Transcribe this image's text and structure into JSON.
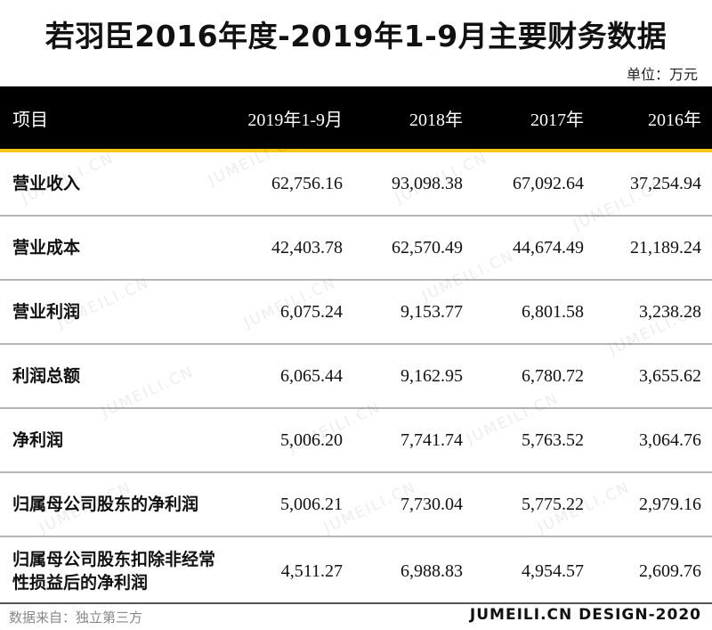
{
  "title": "若羽臣2016年度-2019年1-9月主要财务数据",
  "unit": "单位：万元",
  "watermark": "JUMEILI.CN",
  "table": {
    "headers": [
      "项目",
      "2019年1-9月",
      "2018年",
      "2017年",
      "2016年"
    ],
    "rows": [
      {
        "label": "营业收入",
        "values": [
          "62,756.16",
          "93,098.38",
          "67,092.64",
          "37,254.94"
        ]
      },
      {
        "label": "营业成本",
        "values": [
          "42,403.78",
          "62,570.49",
          "44,674.49",
          "21,189.24"
        ]
      },
      {
        "label": "营业利润",
        "values": [
          "6,075.24",
          "9,153.77",
          "6,801.58",
          "3,238.28"
        ]
      },
      {
        "label": "利润总额",
        "values": [
          "6,065.44",
          "9,162.95",
          "6,780.72",
          "3,655.62"
        ]
      },
      {
        "label": "净利润",
        "values": [
          "5,006.20",
          "7,741.74",
          "5,763.52",
          "3,064.76"
        ]
      },
      {
        "label": "归属母公司股东的净利润",
        "values": [
          "5,006.21",
          "7,730.04",
          "5,775.22",
          "2,979.16"
        ]
      },
      {
        "label": "归属母公司股东扣除非经常性损益后的净利润",
        "values": [
          "4,511.27",
          "6,988.83",
          "4,954.57",
          "2,609.76"
        ]
      }
    ]
  },
  "footer": {
    "source": "数据来自：独立第三方",
    "brand": "JUMEILI.CN DESIGN-2020"
  }
}
